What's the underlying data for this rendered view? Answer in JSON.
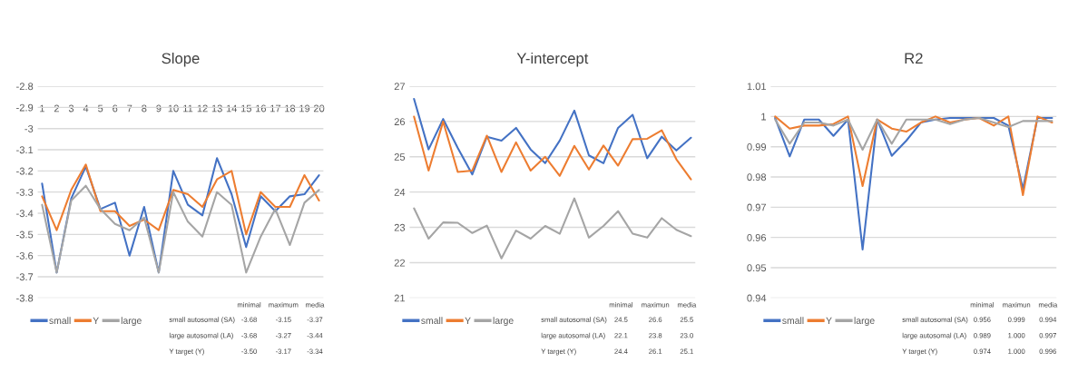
{
  "chart_data": [
    {
      "type": "line",
      "title": "Slope",
      "categories": [
        "1",
        "2",
        "3",
        "4",
        "5",
        "6",
        "7",
        "8",
        "9",
        "10",
        "11",
        "12",
        "13",
        "14",
        "15",
        "16",
        "17",
        "18",
        "19",
        "20"
      ],
      "ylim": [
        -3.8,
        -2.8
      ],
      "yticks": [
        -2.8,
        -2.9,
        -3,
        -3.1,
        -3.2,
        -3.3,
        -3.4,
        -3.5,
        -3.6,
        -3.7,
        -3.8
      ],
      "grid": "y",
      "legend": "bottom left",
      "series": [
        {
          "name": "small",
          "color": "#4472c4",
          "values": [
            -3.26,
            -3.68,
            -3.33,
            -3.18,
            -3.38,
            -3.35,
            -3.6,
            -3.37,
            -3.68,
            -3.2,
            -3.36,
            -3.41,
            -3.14,
            -3.31,
            -3.56,
            -3.32,
            -3.39,
            -3.32,
            -3.31,
            -3.22
          ]
        },
        {
          "name": "Y",
          "color": "#ed7d31",
          "values": [
            -3.32,
            -3.48,
            -3.29,
            -3.17,
            -3.39,
            -3.39,
            -3.46,
            -3.43,
            -3.48,
            -3.29,
            -3.31,
            -3.37,
            -3.24,
            -3.2,
            -3.5,
            -3.3,
            -3.37,
            -3.37,
            -3.22,
            -3.34
          ]
        },
        {
          "name": "large",
          "color": "#a5a5a5",
          "values": [
            -3.36,
            -3.68,
            -3.34,
            -3.27,
            -3.38,
            -3.45,
            -3.48,
            -3.42,
            -3.68,
            -3.3,
            -3.44,
            -3.51,
            -3.3,
            -3.36,
            -3.68,
            -3.51,
            -3.38,
            -3.55,
            -3.35,
            -3.29
          ]
        }
      ],
      "annotations": [
        "minimal",
        "maximum",
        "media",
        "small autosomal (SA)",
        "-3.68",
        "-3.15",
        "-3.37",
        "large autosomal (LA)",
        "-3.68",
        "-3.27",
        "-3.44",
        "Y target (Y)",
        "-3.50",
        "-3.17",
        "-3.34"
      ]
    },
    {
      "type": "line",
      "title": "Y-intercept",
      "categories": [
        null,
        null,
        null,
        null,
        null,
        null,
        null,
        null,
        null,
        null,
        null,
        null,
        null,
        null,
        null,
        null,
        null,
        null,
        null,
        null
      ],
      "ylim": [
        21,
        27
      ],
      "yticks": [
        21,
        22,
        23,
        24,
        25,
        26,
        27
      ],
      "grid": "y",
      "legend": "bottom left",
      "tick_labels": "y",
      "series": [
        {
          "name": "small",
          "color": "#4472c4",
          "values": [
            26.64,
            25.21,
            26.07,
            25.25,
            24.5,
            25.57,
            25.46,
            25.82,
            25.21,
            24.82,
            25.46,
            26.31,
            25.04,
            24.82,
            25.82,
            26.19,
            24.96,
            25.57,
            25.18,
            25.54
          ]
        },
        {
          "name": "Y",
          "color": "#ed7d31",
          "values": [
            26.14,
            24.61,
            26.0,
            24.57,
            24.61,
            25.6,
            24.57,
            25.41,
            24.61,
            25.0,
            24.46,
            25.31,
            24.64,
            25.32,
            24.75,
            25.5,
            25.51,
            25.75,
            24.93,
            24.36
          ]
        },
        {
          "name": "large",
          "color": "#a5a5a5",
          "values": [
            23.54,
            22.68,
            23.14,
            23.13,
            22.84,
            23.05,
            22.12,
            22.91,
            22.68,
            23.04,
            22.82,
            23.82,
            22.71,
            23.04,
            23.46,
            22.82,
            22.71,
            23.26,
            22.93,
            22.75
          ]
        }
      ],
      "annotations": [
        "minimal",
        "maximun",
        "media",
        "small autosomal (SA)",
        "24.5",
        "26.6",
        "25.5",
        "large autosomal (LA)",
        "22.1",
        "23.8",
        "23.0",
        "Y target (Y)",
        "24.4",
        "26.1",
        "25.1"
      ]
    },
    {
      "type": "line",
      "title": "R2",
      "categories": [
        null,
        null,
        null,
        null,
        null,
        null,
        null,
        null,
        null,
        null,
        null,
        null,
        null,
        null,
        null,
        null,
        null,
        null,
        null,
        null
      ],
      "ylim": [
        0.94,
        1.01
      ],
      "yticks": [
        0.94,
        0.95,
        0.96,
        0.97,
        0.98,
        0.99,
        1,
        1.01
      ],
      "grid": "y",
      "legend": "bottom left",
      "tick_labels": "y",
      "series": [
        {
          "name": "small",
          "color": "#4472c4",
          "values": [
            0.9995,
            0.9868,
            0.999,
            0.999,
            0.9936,
            0.999,
            0.956,
            0.999,
            0.987,
            0.992,
            0.998,
            0.999,
            0.9995,
            0.9995,
            0.9995,
            0.9995,
            0.997,
            0.976,
            0.9995,
            0.9995
          ]
        },
        {
          "name": "Y",
          "color": "#ed7d31",
          "values": [
            1.0,
            0.996,
            0.997,
            0.997,
            0.9975,
            1.0,
            0.977,
            0.999,
            0.996,
            0.995,
            0.998,
            1.0,
            0.998,
            0.999,
            0.9995,
            0.997,
            1.0,
            0.974,
            1.0,
            0.998
          ]
        },
        {
          "name": "large",
          "color": "#a5a5a5",
          "values": [
            0.999,
            0.991,
            0.998,
            0.998,
            0.997,
            0.999,
            0.989,
            0.999,
            0.991,
            0.999,
            0.999,
            0.999,
            0.9975,
            0.999,
            0.9995,
            0.998,
            0.9965,
            0.9985,
            0.9985,
            0.9985
          ]
        }
      ],
      "annotations": [
        "minimal",
        "maximun",
        "media",
        "small autosomal (SA)",
        "0.956",
        "0.999",
        "0.994",
        "large autosomal (LA)",
        "0.989",
        "1.000",
        "0.997",
        "Y target (Y)",
        "0.974",
        "1.000",
        "0.996"
      ]
    }
  ]
}
